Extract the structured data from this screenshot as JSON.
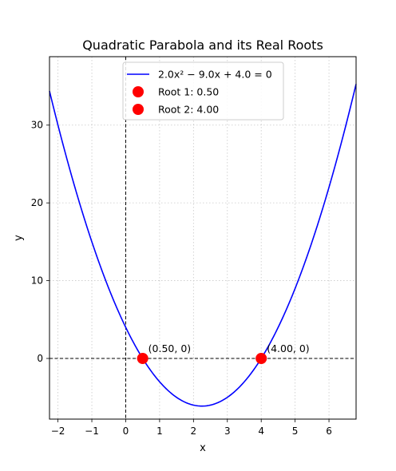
{
  "chart_data": {
    "type": "line",
    "title": "Quadratic Parabola and its Real Roots",
    "xlabel": "x",
    "ylabel": "y",
    "xlim": [
      -2.25,
      6.8
    ],
    "ylim": [
      -7.8,
      38.8
    ],
    "xticks": [
      -2,
      -1,
      0,
      1,
      2,
      3,
      4,
      5,
      6
    ],
    "xtick_labels": [
      "−2",
      "−1",
      "0",
      "1",
      "2",
      "3",
      "4",
      "5",
      "6"
    ],
    "yticks": [
      0,
      10,
      20,
      30
    ],
    "ytick_labels": [
      "0",
      "10",
      "20",
      "30"
    ],
    "grid": true,
    "legend_position": "upper-center",
    "series": [
      {
        "name": "2.0x² − 9.0x + 4.0 = 0",
        "kind": "curve",
        "coefficients": {
          "a": 2.0,
          "b": -9.0,
          "c": 4.0
        },
        "x_range": [
          -2.25,
          6.8
        ],
        "color": "#0000ff"
      },
      {
        "name": "Root 1: 0.50",
        "kind": "point",
        "x": 0.5,
        "y": 0,
        "annotation": "(0.50, 0)",
        "color": "#ff0000"
      },
      {
        "name": "Root 2: 4.00",
        "kind": "point",
        "x": 4.0,
        "y": 0,
        "annotation": "(4.00, 0)",
        "color": "#ff0000"
      }
    ],
    "reference_lines": [
      {
        "axis": "x",
        "value": 0,
        "style": "dashed",
        "color": "#000000"
      },
      {
        "axis": "y",
        "value": 0,
        "style": "dashed",
        "color": "#000000"
      }
    ]
  }
}
